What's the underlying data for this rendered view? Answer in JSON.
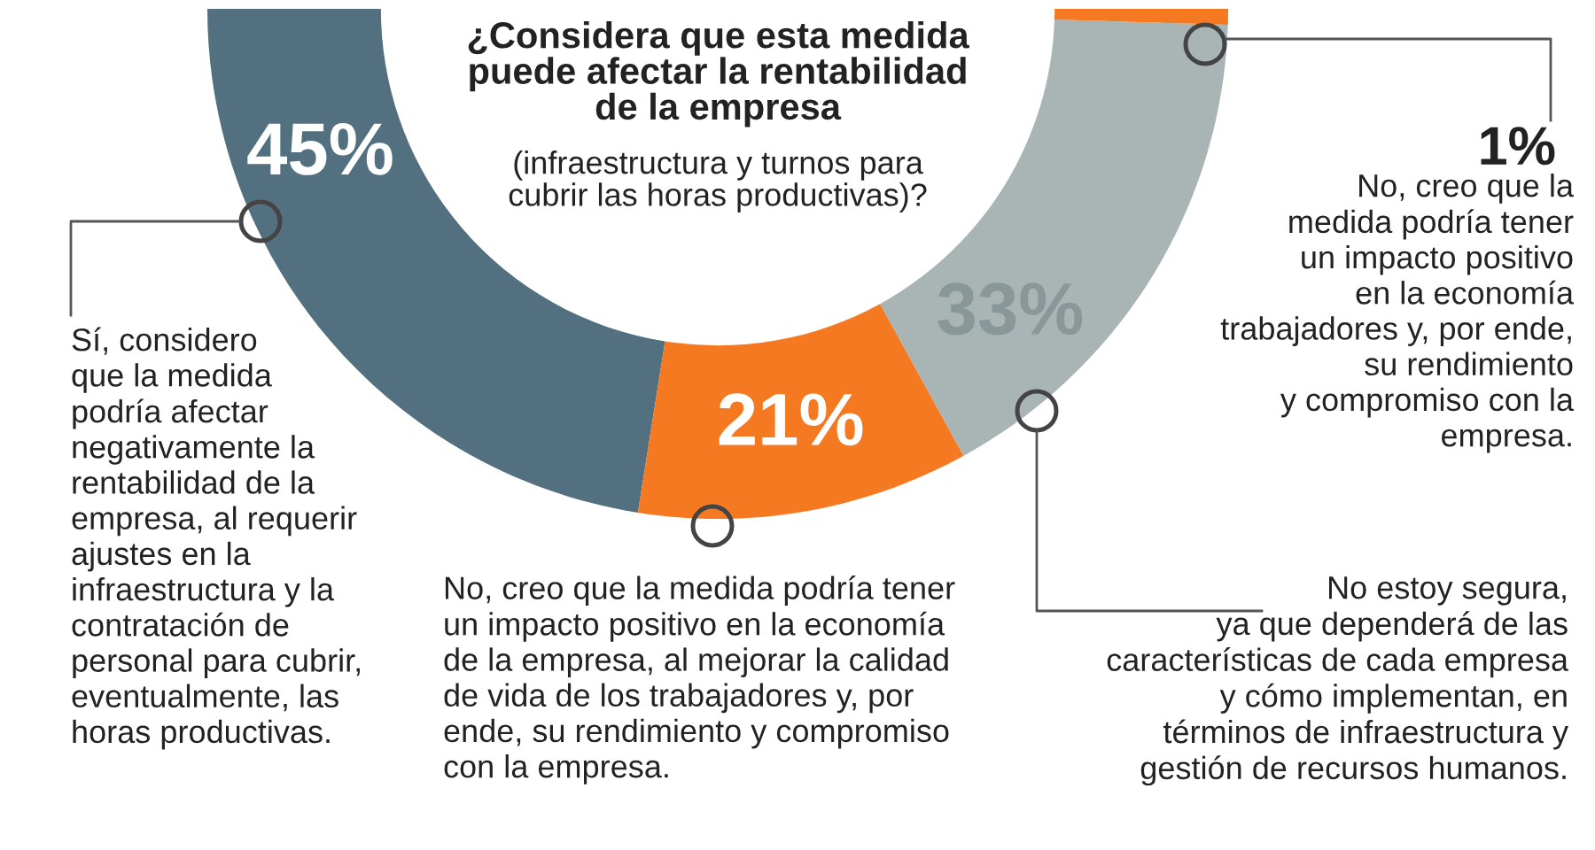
{
  "chart_data": {
    "type": "donut",
    "title": "¿Considera que esta medida\npuede afectar la rentabilidad\nde la empresa",
    "subtitle": "(infraestructura y turnos para\ncubrir las horas productivas)?",
    "categories": [
      "Sí, considero\nque la medida\npodría afectar\nnegativamente la\nrentabilidad de la\nempresa, al requerir\najustes en la\ninfraestructura y la\ncontratación de\npersonal para cubrir,\neventualmente, las\nhoras productivas.",
      "No, creo que la medida podría tener\nun impacto positivo en la economía\nde la empresa, al mejorar la calidad\nde vida de los trabajadores y, por\nende, su rendimiento y compromiso\ncon la empresa.",
      "No estoy segura,\nya que dependerá de las\ncaracterísticas de cada empresa\ny cómo implementan, en\ntérminos de infraestructura y\ngestión de recursos humanos.",
      "No, creo que la\nmedida podría tener\nun impacto positivo\nen la economía\ntrabajadores y, por ende,\nsu rendimiento\ny compromiso con la\nempresa."
    ],
    "values": [
      45,
      21,
      33,
      1
    ],
    "colors": [
      "#52707f",
      "#f47920",
      "#a9b4b4",
      "#f47920"
    ],
    "value_labels": [
      "45%",
      "21%",
      "33%",
      "1%"
    ]
  }
}
